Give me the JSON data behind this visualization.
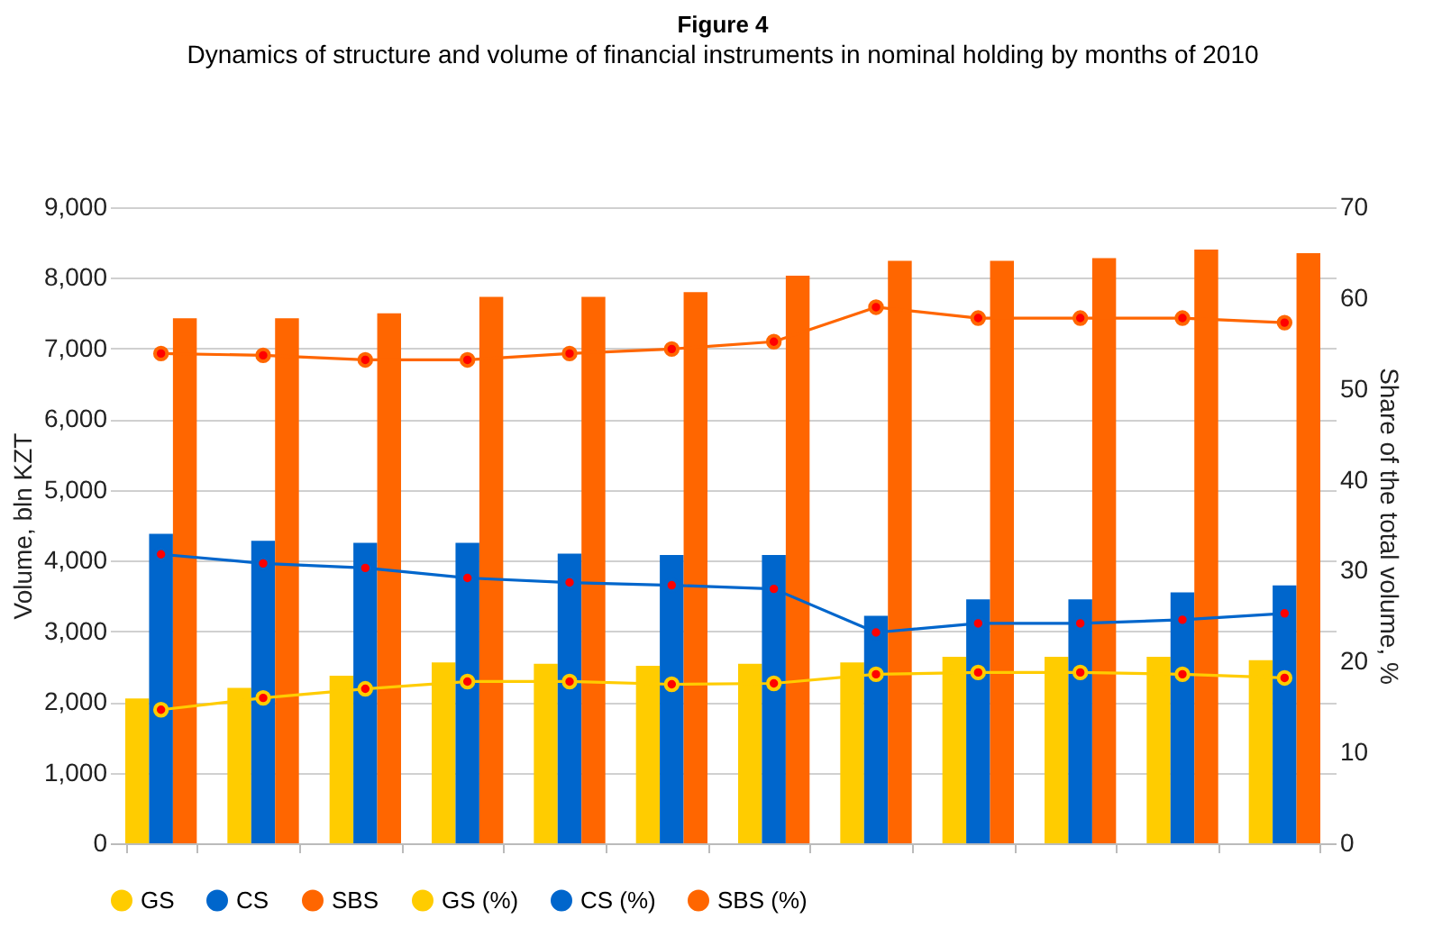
{
  "chart_data": {
    "type": "bar",
    "title": "Figure 4",
    "subtitle": "Dynamics of structure and volume of financial instruments in nominal holding by months of 2010",
    "ylabel": "Volume, bln KZT",
    "y2label": "Share of the total volume, %",
    "categories": [
      null,
      null,
      null,
      null,
      null,
      null,
      null,
      null,
      null,
      null,
      null,
      null
    ],
    "series": [
      {
        "name": "GS",
        "color": "#ffcc00",
        "values": [
          2050,
          2200,
          2370,
          2560,
          2540,
          2510,
          2540,
          2560,
          2640,
          2640,
          2640,
          2590
        ]
      },
      {
        "name": "CS",
        "color": "#0066cc",
        "values": [
          4380,
          4280,
          4250,
          4250,
          4100,
          4080,
          4080,
          3220,
          3450,
          3450,
          3550,
          3650
        ]
      },
      {
        "name": "SBS",
        "color": "#ff6600",
        "values": [
          7430,
          7430,
          7500,
          7730,
          7730,
          7800,
          8030,
          8240,
          8240,
          8280,
          8400,
          8350
        ]
      },
      {
        "name": "GS (%)",
        "type": "line",
        "axis": "y2",
        "color": "#ffcc00",
        "values": [
          14.7,
          16.0,
          17.0,
          17.8,
          17.8,
          17.5,
          17.6,
          18.6,
          18.8,
          18.8,
          18.6,
          18.2
        ]
      },
      {
        "name": "CS (%)",
        "type": "line",
        "axis": "y2",
        "color": "#0066cc",
        "values": [
          31.8,
          30.8,
          30.3,
          29.2,
          28.7,
          28.4,
          28.0,
          23.2,
          24.2,
          24.2,
          24.6,
          25.3
        ]
      },
      {
        "name": "SBS (%)",
        "type": "line",
        "axis": "y2",
        "color": "#ff6600",
        "values": [
          53.9,
          53.7,
          53.2,
          53.2,
          53.9,
          54.4,
          55.2,
          59.0,
          57.8,
          57.8,
          57.8,
          57.3
        ]
      }
    ],
    "ylim": [
      0,
      9000
    ],
    "yticks": [
      {
        "value": 0,
        "label": "0"
      },
      {
        "value": 1000,
        "label": "1,000"
      },
      {
        "value": 2000,
        "label": "2,000"
      },
      {
        "value": 3000,
        "label": "3,000"
      },
      {
        "value": 4000,
        "label": "4,000"
      },
      {
        "value": 5000,
        "label": "5,000"
      },
      {
        "value": 6000,
        "label": "6,000"
      },
      {
        "value": 7000,
        "label": "7,000"
      },
      {
        "value": 8000,
        "label": "8,000"
      },
      {
        "value": 9000,
        "label": "9,000"
      }
    ],
    "y2lim": [
      0,
      70
    ],
    "y2ticks": [
      0,
      10,
      20,
      30,
      40,
      50,
      60,
      70
    ],
    "grid": "y",
    "legend": "bottom",
    "marker": "circle",
    "line_style": "solid"
  }
}
